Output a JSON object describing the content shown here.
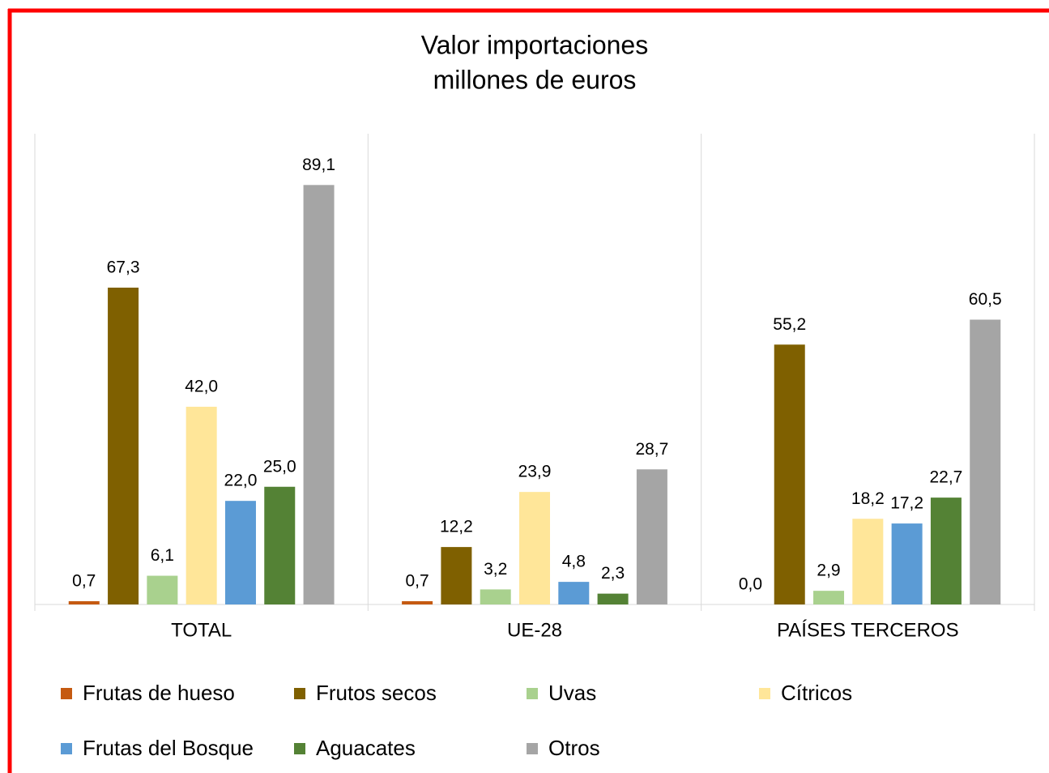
{
  "chart_data": {
    "type": "bar",
    "title": [
      "Valor importaciones",
      "millones de euros"
    ],
    "categories": [
      "TOTAL",
      "UE-28",
      "PAÍSES TERCEROS"
    ],
    "ylim": [
      0,
      100
    ],
    "series": [
      {
        "name": "Frutas de hueso",
        "color": "#c55a11",
        "values": [
          0.7,
          0.7,
          0.0
        ],
        "value_labels": [
          "0,7",
          "0,7",
          "0,0"
        ]
      },
      {
        "name": "Frutos secos",
        "color": "#7f6000",
        "values": [
          67.3,
          12.2,
          55.2
        ],
        "value_labels": [
          "67,3",
          "12,2",
          "55,2"
        ]
      },
      {
        "name": "Uvas",
        "color": "#a9d18e",
        "values": [
          6.1,
          3.2,
          2.9
        ],
        "value_labels": [
          "6,1",
          "3,2",
          "2,9"
        ]
      },
      {
        "name": "Cítricos",
        "color": "#ffe699",
        "values": [
          42.0,
          23.9,
          18.2
        ],
        "value_labels": [
          "42,0",
          "23,9",
          "18,2"
        ]
      },
      {
        "name": "Frutas del Bosque",
        "color": "#5b9bd5",
        "values": [
          22.0,
          4.8,
          17.2
        ],
        "value_labels": [
          "22,0",
          "4,8",
          "17,2"
        ]
      },
      {
        "name": "Aguacates",
        "color": "#548235",
        "values": [
          25.0,
          2.3,
          22.7
        ],
        "value_labels": [
          "25,0",
          "2,3",
          "22,7"
        ]
      },
      {
        "name": "Otros",
        "color": "#a5a5a5",
        "values": [
          89.1,
          28.7,
          60.5
        ],
        "value_labels": [
          "89,1",
          "28,7",
          "60,5"
        ]
      }
    ]
  }
}
